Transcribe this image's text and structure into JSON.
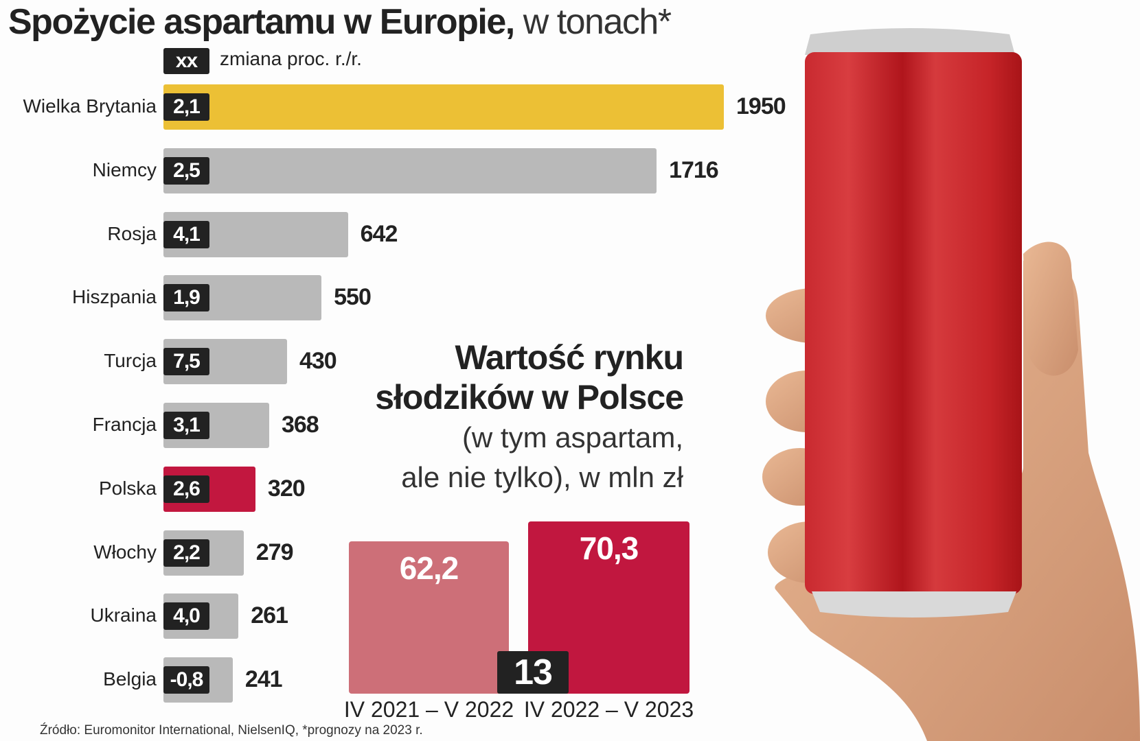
{
  "title": {
    "bold": "Spożycie aspartamu w Europie,",
    "light": "w tonach*"
  },
  "legend": {
    "badge": "xx",
    "label": "zmiana proc. r./r."
  },
  "chart_data": [
    {
      "type": "bar",
      "orientation": "horizontal",
      "title": "Spożycie aspartamu w Europie, w tonach*",
      "categories": [
        "Wielka Brytania",
        "Niemcy",
        "Rosja",
        "Hiszpania",
        "Turcja",
        "Francja",
        "Polska",
        "Włochy",
        "Ukraina",
        "Belgia"
      ],
      "values": [
        1950,
        1716,
        642,
        550,
        430,
        368,
        320,
        279,
        261,
        241
      ],
      "value_labels": [
        "1950",
        "1716",
        "642",
        "550",
        "430",
        "368",
        "320",
        "279",
        "261",
        "241"
      ],
      "change_pct_labels": [
        "2,1",
        "2,5",
        "4,1",
        "1,9",
        "7,5",
        "3,1",
        "2,6",
        "2,2",
        "4,0",
        "-0,8"
      ],
      "colors": [
        "#ecc035",
        "#b9b9b9",
        "#b9b9b9",
        "#b9b9b9",
        "#b9b9b9",
        "#b9b9b9",
        "#c2173f",
        "#b9b9b9",
        "#b9b9b9",
        "#b9b9b9"
      ],
      "xlim": [
        0,
        1950
      ],
      "grid": false
    },
    {
      "type": "bar",
      "title_lines": [
        "Wartość rynku",
        "słodzików w Polsce"
      ],
      "subtitle_lines": [
        "(w tym aspartam,",
        "ale nie tylko), w mln zł"
      ],
      "categories": [
        "IV 2021 – V 2022",
        "IV 2022 – V 2023"
      ],
      "values": [
        62.2,
        70.3
      ],
      "value_labels": [
        "62,2",
        "70,3"
      ],
      "colors": [
        "#cd6f78",
        "#c1173f"
      ],
      "change_badge": "13",
      "ylim": [
        0,
        70.3
      ],
      "grid": false
    }
  ],
  "source": "Źródło: Euromonitor International, NielsenIQ,  *prognozy na 2023 r."
}
